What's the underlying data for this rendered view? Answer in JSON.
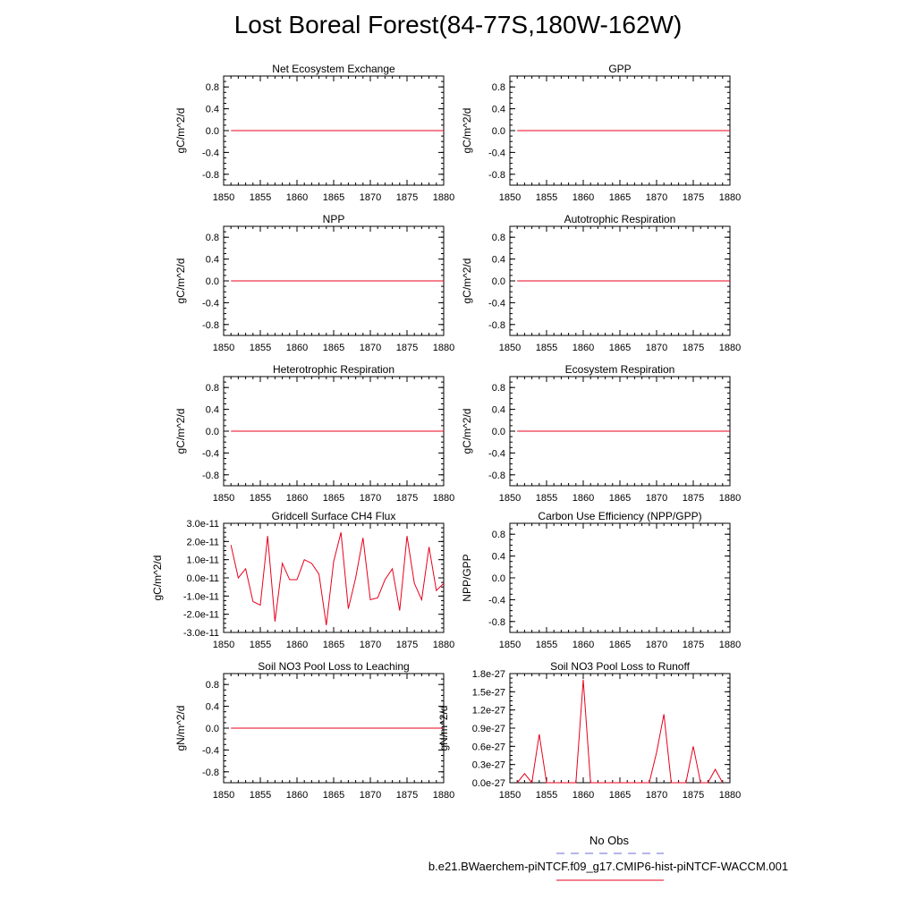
{
  "figure": {
    "title": "Lost Boreal Forest(84-77S,180W-162W)"
  },
  "legend": {
    "header": "No Obs",
    "caption": "b.e21.BWaerchem-piNTCF.f09_g17.CMIP6-hist-piNTCF-WACCM.001",
    "obs_color": "#6b6bd6",
    "model_color": "#e8001c"
  },
  "chart_data": [
    {
      "type": "line",
      "title": "Net Ecosystem Exchange",
      "ylabel": "gC/m^2/d",
      "xlim": [
        1850,
        1880
      ],
      "ylim": [
        -1,
        1
      ],
      "yticks": [
        -0.8,
        -0.4,
        0.0,
        0.4,
        0.8
      ],
      "ytick_labels": [
        "-0.8",
        "-0.4",
        "0.0",
        "0.4",
        "0.8"
      ],
      "xticks": [
        1850,
        1855,
        1860,
        1865,
        1870,
        1875,
        1880
      ],
      "series": [
        {
          "x": [
            1851,
            1880
          ],
          "y": [
            0,
            0
          ]
        }
      ]
    },
    {
      "type": "line",
      "title": "GPP",
      "ylabel": "gC/m^2/d",
      "xlim": [
        1850,
        1880
      ],
      "ylim": [
        -1,
        1
      ],
      "yticks": [
        -0.8,
        -0.4,
        0.0,
        0.4,
        0.8
      ],
      "ytick_labels": [
        "-0.8",
        "-0.4",
        "0.0",
        "0.4",
        "0.8"
      ],
      "xticks": [
        1850,
        1855,
        1860,
        1865,
        1870,
        1875,
        1880
      ],
      "series": [
        {
          "x": [
            1851,
            1880
          ],
          "y": [
            0,
            0
          ]
        }
      ]
    },
    {
      "type": "line",
      "title": "NPP",
      "ylabel": "gC/m^2/d",
      "xlim": [
        1850,
        1880
      ],
      "ylim": [
        -1,
        1
      ],
      "yticks": [
        -0.8,
        -0.4,
        0.0,
        0.4,
        0.8
      ],
      "ytick_labels": [
        "-0.8",
        "-0.4",
        "0.0",
        "0.4",
        "0.8"
      ],
      "xticks": [
        1850,
        1855,
        1860,
        1865,
        1870,
        1875,
        1880
      ],
      "series": [
        {
          "x": [
            1851,
            1880
          ],
          "y": [
            0,
            0
          ]
        }
      ]
    },
    {
      "type": "line",
      "title": "Autotrophic Respiration",
      "ylabel": "gC/m^2/d",
      "xlim": [
        1850,
        1880
      ],
      "ylim": [
        -1,
        1
      ],
      "yticks": [
        -0.8,
        -0.4,
        0.0,
        0.4,
        0.8
      ],
      "ytick_labels": [
        "-0.8",
        "-0.4",
        "0.0",
        "0.4",
        "0.8"
      ],
      "xticks": [
        1850,
        1855,
        1860,
        1865,
        1870,
        1875,
        1880
      ],
      "series": [
        {
          "x": [
            1851,
            1880
          ],
          "y": [
            0,
            0
          ]
        }
      ]
    },
    {
      "type": "line",
      "title": "Heterotrophic Respiration",
      "ylabel": "gC/m^2/d",
      "xlim": [
        1850,
        1880
      ],
      "ylim": [
        -1,
        1
      ],
      "yticks": [
        -0.8,
        -0.4,
        0.0,
        0.4,
        0.8
      ],
      "ytick_labels": [
        "-0.8",
        "-0.4",
        "0.0",
        "0.4",
        "0.8"
      ],
      "xticks": [
        1850,
        1855,
        1860,
        1865,
        1870,
        1875,
        1880
      ],
      "series": [
        {
          "x": [
            1851,
            1880
          ],
          "y": [
            0,
            0
          ]
        }
      ]
    },
    {
      "type": "line",
      "title": "Ecosystem Respiration",
      "ylabel": "gC/m^2/d",
      "xlim": [
        1850,
        1880
      ],
      "ylim": [
        -1,
        1
      ],
      "yticks": [
        -0.8,
        -0.4,
        0.0,
        0.4,
        0.8
      ],
      "ytick_labels": [
        "-0.8",
        "-0.4",
        "0.0",
        "0.4",
        "0.8"
      ],
      "xticks": [
        1850,
        1855,
        1860,
        1865,
        1870,
        1875,
        1880
      ],
      "series": [
        {
          "x": [
            1851,
            1880
          ],
          "y": [
            0,
            0
          ]
        }
      ]
    },
    {
      "type": "line",
      "title": "Gridcell Surface CH4 Flux",
      "ylabel": "gC/m^2/d",
      "xlim": [
        1850,
        1880
      ],
      "ylim": [
        -3e-11,
        3e-11
      ],
      "yticks": [
        -3e-11,
        -2e-11,
        -1e-11,
        0,
        1e-11,
        2e-11,
        3e-11
      ],
      "ytick_labels": [
        "-3.0e-11",
        "-2.0e-11",
        "-1.0e-11",
        "0.0e-11",
        "1.0e-11",
        "2.0e-11",
        "3.0e-11"
      ],
      "xticks": [
        1850,
        1855,
        1860,
        1865,
        1870,
        1875,
        1880
      ],
      "series": [
        {
          "x": [
            1851,
            1852,
            1853,
            1854,
            1855,
            1856,
            1857,
            1858,
            1859,
            1860,
            1861,
            1862,
            1863,
            1864,
            1865,
            1866,
            1867,
            1868,
            1869,
            1870,
            1871,
            1872,
            1873,
            1874,
            1875,
            1876,
            1877,
            1878,
            1879,
            1880
          ],
          "y": [
            1.8e-11,
            0.0,
            5e-12,
            -1.3e-11,
            -1.5e-11,
            2.3e-11,
            -2.4e-11,
            8e-12,
            -1e-12,
            -1e-12,
            1e-11,
            8e-12,
            2e-12,
            -2.6e-11,
            9e-12,
            2.5e-11,
            -1.7e-11,
            0.0,
            2.2e-11,
            -1.2e-11,
            -1.1e-11,
            -1e-12,
            5e-12,
            -1.8e-11,
            2.3e-11,
            -3e-12,
            -1.2e-11,
            1.7e-11,
            -7e-12,
            -3e-12
          ]
        }
      ]
    },
    {
      "type": "line",
      "title": "Carbon Use Efficiency (NPP/GPP)",
      "ylabel": "NPP/GPP",
      "xlim": [
        1850,
        1880
      ],
      "ylim": [
        -1,
        1
      ],
      "yticks": [
        -0.8,
        -0.4,
        0.0,
        0.4,
        0.8
      ],
      "ytick_labels": [
        "-0.8",
        "-0.4",
        "0.0",
        "0.4",
        "0.8"
      ],
      "xticks": [
        1850,
        1855,
        1860,
        1865,
        1870,
        1875,
        1880
      ],
      "series": []
    },
    {
      "type": "line",
      "title": "Soil NO3 Pool Loss to Leaching",
      "ylabel": "gN/m^2/d",
      "xlim": [
        1850,
        1880
      ],
      "ylim": [
        -1,
        1
      ],
      "yticks": [
        -0.8,
        -0.4,
        0.0,
        0.4,
        0.8
      ],
      "ytick_labels": [
        "-0.8",
        "-0.4",
        "0.0",
        "0.4",
        "0.8"
      ],
      "xticks": [
        1850,
        1855,
        1860,
        1865,
        1870,
        1875,
        1880
      ],
      "series": [
        {
          "x": [
            1851,
            1880
          ],
          "y": [
            0,
            0
          ]
        }
      ]
    },
    {
      "type": "line",
      "title": "Soil NO3 Pool Loss to Runoff",
      "ylabel": "gN/m^2/d",
      "xlim": [
        1850,
        1880
      ],
      "ylim": [
        0,
        1.8e-27
      ],
      "yticks": [
        0,
        3e-28,
        6e-28,
        9e-28,
        1.2e-27,
        1.5e-27,
        1.8e-27
      ],
      "ytick_labels": [
        "0.0e-27",
        "0.3e-27",
        "0.6e-27",
        "0.9e-27",
        "1.2e-27",
        "1.5e-27",
        "1.8e-27"
      ],
      "xticks": [
        1850,
        1855,
        1860,
        1865,
        1870,
        1875,
        1880
      ],
      "series": [
        {
          "x": [
            1851,
            1852,
            1853,
            1854,
            1855,
            1856,
            1857,
            1858,
            1859,
            1860,
            1861,
            1862,
            1863,
            1864,
            1865,
            1866,
            1867,
            1868,
            1869,
            1870,
            1871,
            1872,
            1873,
            1874,
            1875,
            1876,
            1877,
            1878,
            1879
          ],
          "y": [
            0,
            1.5e-28,
            0,
            8e-28,
            0,
            0,
            0,
            0,
            0,
            1.7e-27,
            0,
            0,
            0,
            0,
            0,
            0,
            0,
            0,
            0,
            5e-28,
            1.13e-27,
            0,
            0,
            0,
            6e-28,
            0,
            0,
            2.2e-28,
            0
          ]
        }
      ]
    }
  ]
}
